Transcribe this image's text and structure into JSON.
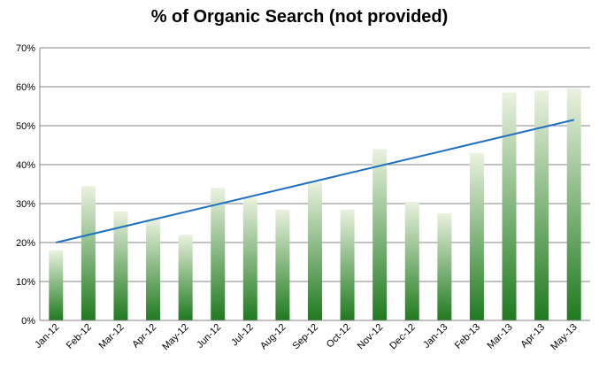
{
  "chart_data": {
    "type": "bar",
    "title": "% of Organic Search (not provided)",
    "xlabel": "",
    "ylabel": "",
    "categories": [
      "Jan-12",
      "Feb-12",
      "Mar-12",
      "Apr-12",
      "May-12",
      "Jun-12",
      "Jul-12",
      "Aug-12",
      "Sep-12",
      "Oct-12",
      "Nov-12",
      "Dec-12",
      "Jan-13",
      "Feb-13",
      "Mar-13",
      "Apr-13",
      "May-13"
    ],
    "series": [
      {
        "values": [
          18,
          34.5,
          28,
          26,
          22,
          34,
          31.5,
          28.5,
          35.5,
          28.5,
          44,
          30.5,
          27.5,
          43,
          58.5,
          59,
          59.5
        ]
      }
    ],
    "trendline": {
      "type": "linear",
      "start": 20,
      "end": 51.5
    },
    "ylim": [
      0,
      70
    ],
    "yticks": [
      "0%",
      "10%",
      "20%",
      "30%",
      "40%",
      "50%",
      "60%",
      "70%"
    ],
    "grid": true,
    "legend": "none",
    "colors": {
      "bar_top": "#eaf2df",
      "bar_bottom": "#1f7a1f",
      "trend": "#1f6fbf",
      "grid": "#868686"
    }
  }
}
